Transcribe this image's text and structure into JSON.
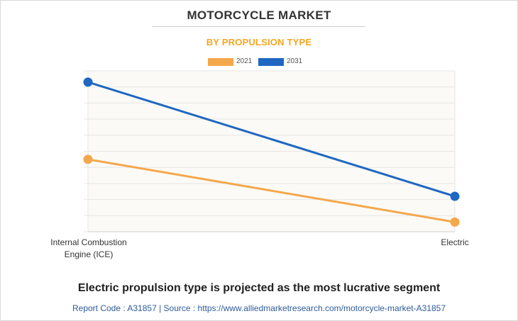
{
  "header": {
    "title": "MOTORCYCLE MARKET",
    "subtitle": "BY PROPULSION TYPE"
  },
  "colors": {
    "subtitle": "#f5a623",
    "series_2021": "#f4a74b",
    "series_2031": "#1f67c2",
    "grid": "#e6e6e6",
    "plot_bg": "#fbfaf6"
  },
  "chart_data": {
    "type": "line",
    "categories": [
      "Internal Combustion\nEngine (ICE)",
      "Electric"
    ],
    "series": [
      {
        "name": "2021",
        "values": [
          45,
          6
        ]
      },
      {
        "name": "2031",
        "values": [
          93,
          22
        ]
      }
    ],
    "ylim": [
      0,
      100
    ],
    "yticks_shown": false,
    "grid": true,
    "legend_position": "top-center"
  },
  "footer": {
    "headline": "Electric propulsion type is projected as the most lucrative segment",
    "source": "Report Code : A31857  |  Source : https://www.alliedmarketresearch.com/motorcycle-market-A31857"
  }
}
